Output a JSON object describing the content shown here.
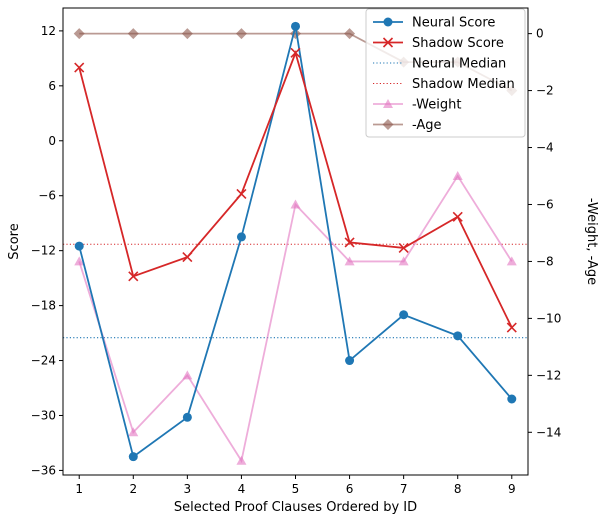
{
  "chart_data": {
    "type": "line",
    "title": "",
    "xlabel": "Selected Proof Clauses Ordered by ID",
    "ylabel_left": "Score",
    "ylabel_right": "-Weight, -Age",
    "x": [
      1,
      2,
      3,
      4,
      5,
      6,
      7,
      8,
      9
    ],
    "x_tick_labels": [
      "1",
      "2",
      "3",
      "4",
      "5",
      "6",
      "7",
      "8",
      "9"
    ],
    "ylim_left": [
      -36.5,
      14.5
    ],
    "yticks_left": [
      12,
      6,
      0,
      -6,
      -12,
      -18,
      -24,
      -30,
      -36
    ],
    "ylim_right": [
      -15.5,
      0.9
    ],
    "yticks_right": [
      0,
      -2,
      -4,
      -6,
      -8,
      -10,
      -12,
      -14
    ],
    "grid": false,
    "legend_position": "top-right",
    "series": [
      {
        "name": "Neural Score",
        "axis": "left",
        "marker": "circle",
        "color": "#1f77b4",
        "values": [
          -11.5,
          -34.5,
          -30.2,
          -10.5,
          12.5,
          -24.0,
          -19.0,
          -21.3,
          -28.2
        ]
      },
      {
        "name": "Shadow Score",
        "axis": "left",
        "marker": "x",
        "color": "#d62728",
        "values": [
          8.0,
          -14.8,
          -12.7,
          -5.8,
          9.6,
          -11.1,
          -11.7,
          -8.3,
          -20.4
        ]
      },
      {
        "name": "-Weight",
        "axis": "right",
        "marker": "triangle",
        "color": "#e377c2",
        "alpha": 0.6,
        "values": [
          -8,
          -14,
          -12,
          -15,
          -6,
          -8,
          -8,
          -5,
          -8
        ]
      },
      {
        "name": "-Age",
        "axis": "right",
        "marker": "diamond",
        "color": "#8c564b",
        "alpha": 0.6,
        "values": [
          0,
          0,
          0,
          0,
          0,
          0,
          -1,
          -1,
          -2
        ]
      }
    ],
    "reference_lines": [
      {
        "name": "Neural Median",
        "axis": "left",
        "value": -21.5,
        "style": "dotted",
        "color": "#1f77b4"
      },
      {
        "name": "Shadow Median",
        "axis": "left",
        "value": -11.3,
        "style": "dotted",
        "color": "#d62728"
      }
    ],
    "legend": [
      "Neural Score",
      "Shadow Score",
      "Neural Median",
      "Shadow Median",
      "-Weight",
      "-Age"
    ]
  }
}
